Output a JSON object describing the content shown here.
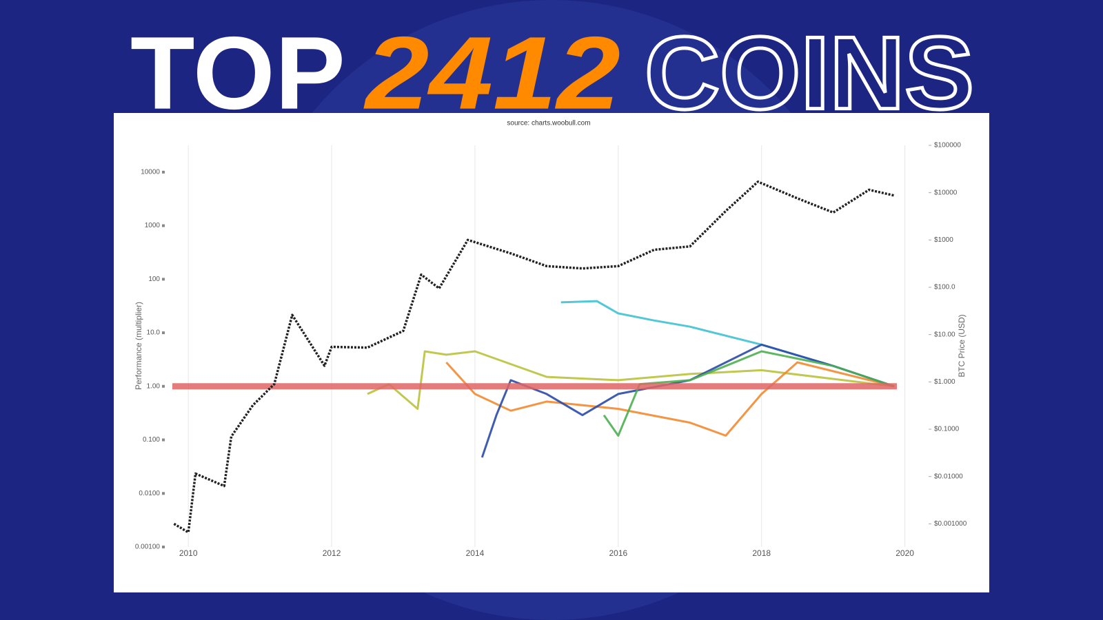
{
  "header": {
    "words": [
      "TOP",
      "2412",
      "COINS"
    ]
  },
  "chart_data": {
    "type": "line",
    "subtitle": "source: charts.woobull.com",
    "y_label": "Performance (multiplier)",
    "y2_label": "BTC Price (USD)",
    "log_scale": true,
    "grid": true,
    "xlim": [
      2009.7,
      2020.1
    ],
    "xticks": [
      2010,
      2012,
      2014,
      2016,
      2018,
      2020
    ],
    "ylim": [
      0.001,
      31623
    ],
    "yticks": [
      {
        "value": 0.001,
        "label": "0.00100"
      },
      {
        "value": 0.01,
        "label": "0.0100"
      },
      {
        "value": 0.1,
        "label": "0.100"
      },
      {
        "value": 1,
        "label": "1.00"
      },
      {
        "value": 10,
        "label": "10.0"
      },
      100,
      1000,
      10000
    ],
    "y2lim": [
      0.000324,
      100000
    ],
    "y2ticks": [
      {
        "value": 0.001,
        "label": "$0.001000"
      },
      {
        "value": 0.01,
        "label": "$0.01000"
      },
      {
        "value": 0.1,
        "label": "$0.1000"
      },
      {
        "value": 1,
        "label": "$1.000"
      },
      {
        "value": 10,
        "label": "$10.00"
      },
      {
        "value": 100,
        "label": "$100.0"
      },
      {
        "value": 1000,
        "label": "$1000"
      },
      {
        "value": 10000,
        "label": "$10000"
      },
      {
        "value": 100000,
        "label": "$100000"
      }
    ],
    "reference_line": {
      "value": 1,
      "color": "#e06666"
    },
    "series": [
      {
        "color": "#222222",
        "axis": "y2",
        "dashed": true,
        "x": [
          2009.8,
          2010.0,
          2010.1,
          2010.5,
          2010.6,
          2010.9,
          2011.2,
          2011.45,
          2011.9,
          2012.0,
          2012.5,
          2013.0,
          2013.25,
          2013.5,
          2013.9,
          2014.5,
          2015.0,
          2015.5,
          2016.0,
          2016.5,
          2017.0,
          2017.5,
          2017.95,
          2018.5,
          2019.0,
          2019.5,
          2019.85
        ],
        "values": [
          0.001,
          0.00066,
          0.0115,
          0.0063,
          0.07,
          0.32,
          0.9,
          26,
          2.2,
          5.5,
          5.3,
          12,
          185,
          95,
          1000,
          520,
          280,
          250,
          280,
          620,
          730,
          4100,
          17000,
          7600,
          3800,
          11500,
          8700
        ]
      },
      {
        "color": "#3fc1d0",
        "x": [
          2015.2,
          2015.7,
          2016.0,
          2016.5,
          2017.0,
          2018.0,
          2019.0,
          2019.85
        ],
        "values": [
          37,
          39,
          23,
          17,
          13,
          6,
          2.4,
          1
        ]
      },
      {
        "color": "#b9c23c",
        "x": [
          2012.5,
          2012.8,
          2013.2,
          2013.3,
          2013.6,
          2014.0,
          2015.0,
          2016.0,
          2017.0,
          2018.0,
          2019.85
        ],
        "values": [
          0.72,
          1.1,
          0.38,
          4.5,
          3.9,
          4.5,
          1.5,
          1.3,
          1.7,
          2,
          1
        ]
      },
      {
        "color": "#f28a30",
        "x": [
          2013.6,
          2014.0,
          2014.5,
          2015.0,
          2016.0,
          2017.0,
          2017.5,
          2018.0,
          2018.5,
          2019.85
        ],
        "values": [
          2.8,
          0.72,
          0.35,
          0.52,
          0.38,
          0.21,
          0.12,
          0.72,
          2.8,
          1
        ]
      },
      {
        "color": "#2a4aa8",
        "x": [
          2014.1,
          2014.3,
          2014.5,
          2015.0,
          2015.5,
          2016.0,
          2017.0,
          2018.0,
          2019.0,
          2019.85
        ],
        "values": [
          0.047,
          0.29,
          1.3,
          0.72,
          0.29,
          0.72,
          1.3,
          6,
          2.4,
          1
        ]
      },
      {
        "color": "#4caf50",
        "x": [
          2015.8,
          2016.0,
          2016.3,
          2017.0,
          2017.5,
          2018.0,
          2019.0,
          2019.85
        ],
        "values": [
          0.29,
          0.12,
          1.1,
          1.3,
          2.4,
          4.5,
          2.4,
          1
        ]
      }
    ]
  }
}
